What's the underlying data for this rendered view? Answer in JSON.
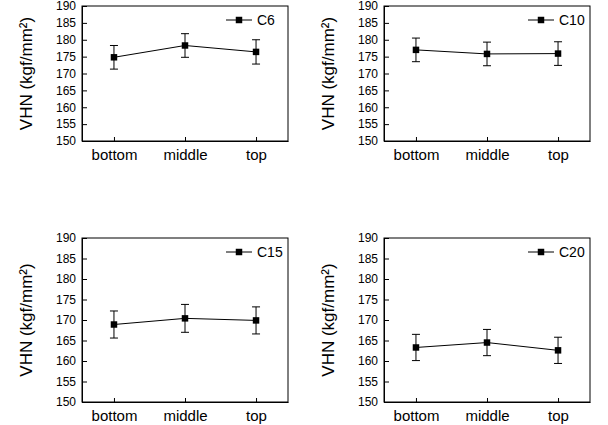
{
  "chart_data": [
    {
      "type": "line",
      "ylabel": "VHN (kgf/mm²)",
      "categories": [
        "bottom",
        "middle",
        "top"
      ],
      "series": [
        {
          "name": "C6",
          "color": "#000000",
          "marker": "square",
          "values": [
            174.8,
            178.3,
            176.4
          ],
          "errors": [
            3.5,
            3.5,
            3.6
          ]
        }
      ],
      "ylim": [
        150,
        190
      ],
      "yticks": [
        150,
        155,
        160,
        165,
        170,
        175,
        180,
        185,
        190
      ],
      "legend": "upper right"
    },
    {
      "type": "line",
      "ylabel": "VHN (kgf/mm²)",
      "categories": [
        "bottom",
        "middle",
        "top"
      ],
      "series": [
        {
          "name": "C10",
          "color": "#000000",
          "marker": "square",
          "values": [
            177.0,
            175.8,
            175.9
          ],
          "errors": [
            3.5,
            3.5,
            3.5
          ]
        }
      ],
      "ylim": [
        150,
        190
      ],
      "yticks": [
        150,
        155,
        160,
        165,
        170,
        175,
        180,
        185,
        190
      ],
      "legend": "upper right"
    },
    {
      "type": "line",
      "ylabel": "VHN (kgf/mm²)",
      "categories": [
        "bottom",
        "middle",
        "top"
      ],
      "series": [
        {
          "name": "C15",
          "color": "#000000",
          "marker": "square",
          "values": [
            168.9,
            170.4,
            169.9
          ],
          "errors": [
            3.3,
            3.4,
            3.3
          ]
        }
      ],
      "ylim": [
        150,
        190
      ],
      "yticks": [
        150,
        155,
        160,
        165,
        170,
        175,
        180,
        185,
        190
      ],
      "legend": "upper right"
    },
    {
      "type": "line",
      "ylabel": "VHN (kgf/mm²)",
      "categories": [
        "bottom",
        "middle",
        "top"
      ],
      "series": [
        {
          "name": "C20",
          "color": "#000000",
          "marker": "square",
          "values": [
            163.3,
            164.5,
            162.6
          ],
          "errors": [
            3.2,
            3.2,
            3.2
          ]
        }
      ],
      "ylim": [
        150,
        190
      ],
      "yticks": [
        150,
        155,
        160,
        165,
        170,
        175,
        180,
        185,
        190
      ],
      "legend": "upper right"
    }
  ]
}
